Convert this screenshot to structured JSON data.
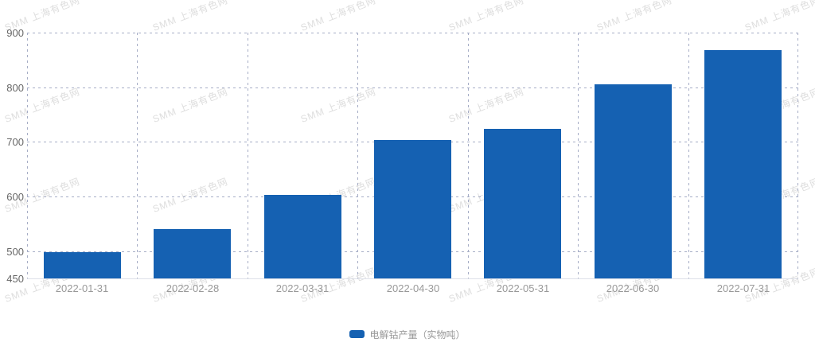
{
  "chart_data": {
    "type": "bar",
    "title": "",
    "categories": [
      "2022-01-31",
      "2022-02-28",
      "2022-03-31",
      "2022-04-30",
      "2022-05-31",
      "2022-06-30",
      "2022-07-31"
    ],
    "series": [
      {
        "name": "电解钴产量（实物吨）",
        "values": [
          498,
          541,
          603,
          703,
          724,
          806,
          868
        ]
      }
    ],
    "xlabel": "",
    "ylabel": "",
    "ylim": [
      450,
      900
    ],
    "yticks": [
      450,
      500,
      600,
      700,
      800,
      900
    ],
    "grid": "dashed horizontal and vertical",
    "legend_position": "bottom-center",
    "bar_color": "#1561b2"
  },
  "watermark": {
    "text": "SMM 上海有色网"
  },
  "colors": {
    "bar": "#1561b2",
    "grid": "#a6adc6",
    "axis_line": "#dde0e8",
    "y_label": "#666666",
    "x_label": "#999999",
    "legend_text": "#999999"
  }
}
